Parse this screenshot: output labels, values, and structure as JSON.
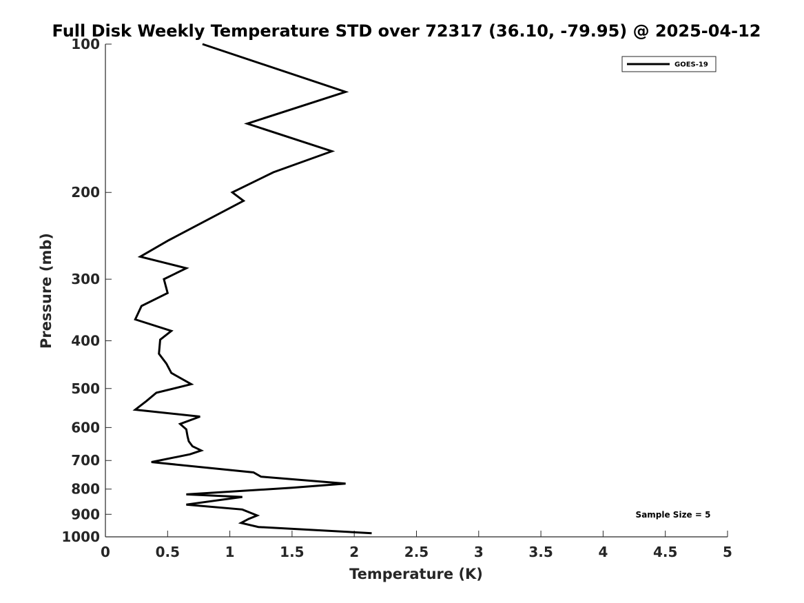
{
  "chart_data": {
    "type": "line",
    "title": "Full Disk Weekly Temperature STD over 72317 (36.10, -79.95) @ 2025-04-12",
    "xlabel": "Temperature (K)",
    "ylabel": "Pressure (mb)",
    "xlim": [
      0,
      5
    ],
    "ylim": [
      100,
      1000
    ],
    "y_scale": "log",
    "y_reversed": true,
    "x_ticks": [
      "0",
      "0.5",
      "1",
      "1.5",
      "2",
      "2.5",
      "3",
      "3.5",
      "4",
      "4.5",
      "5"
    ],
    "y_ticks": [
      "100",
      "200",
      "300",
      "400",
      "500",
      "600",
      "700",
      "800",
      "900",
      "1000"
    ],
    "grid": false,
    "legend": {
      "placement": "top-right",
      "entries": [
        "GOES-19"
      ]
    },
    "annotation": "Sample Size = 5",
    "series": [
      {
        "name": "GOES-19",
        "color": "#000000",
        "points": [
          [
            0.78,
            100
          ],
          [
            1.93,
            125
          ],
          [
            1.14,
            145
          ],
          [
            1.82,
            165
          ],
          [
            1.35,
            182
          ],
          [
            1.02,
            200
          ],
          [
            1.11,
            208
          ],
          [
            0.51,
            250
          ],
          [
            0.28,
            270
          ],
          [
            0.65,
            285
          ],
          [
            0.47,
            300
          ],
          [
            0.5,
            320
          ],
          [
            0.29,
            340
          ],
          [
            0.24,
            362
          ],
          [
            0.53,
            382
          ],
          [
            0.44,
            398
          ],
          [
            0.43,
            425
          ],
          [
            0.49,
            445
          ],
          [
            0.53,
            465
          ],
          [
            0.69,
            490
          ],
          [
            0.41,
            510
          ],
          [
            0.33,
            530
          ],
          [
            0.24,
            552
          ],
          [
            0.76,
            570
          ],
          [
            0.6,
            590
          ],
          [
            0.65,
            605
          ],
          [
            0.66,
            625
          ],
          [
            0.67,
            640
          ],
          [
            0.7,
            655
          ],
          [
            0.77,
            668
          ],
          [
            0.68,
            680
          ],
          [
            0.37,
            705
          ],
          [
            1.19,
            740
          ],
          [
            1.25,
            755
          ],
          [
            1.93,
            780
          ],
          [
            1.5,
            795
          ],
          [
            0.65,
            820
          ],
          [
            1.1,
            830
          ],
          [
            0.65,
            860
          ],
          [
            1.1,
            880
          ],
          [
            1.22,
            905
          ],
          [
            1.15,
            920
          ],
          [
            1.09,
            937
          ],
          [
            1.23,
            955
          ],
          [
            2.14,
            983
          ]
        ]
      }
    ]
  }
}
